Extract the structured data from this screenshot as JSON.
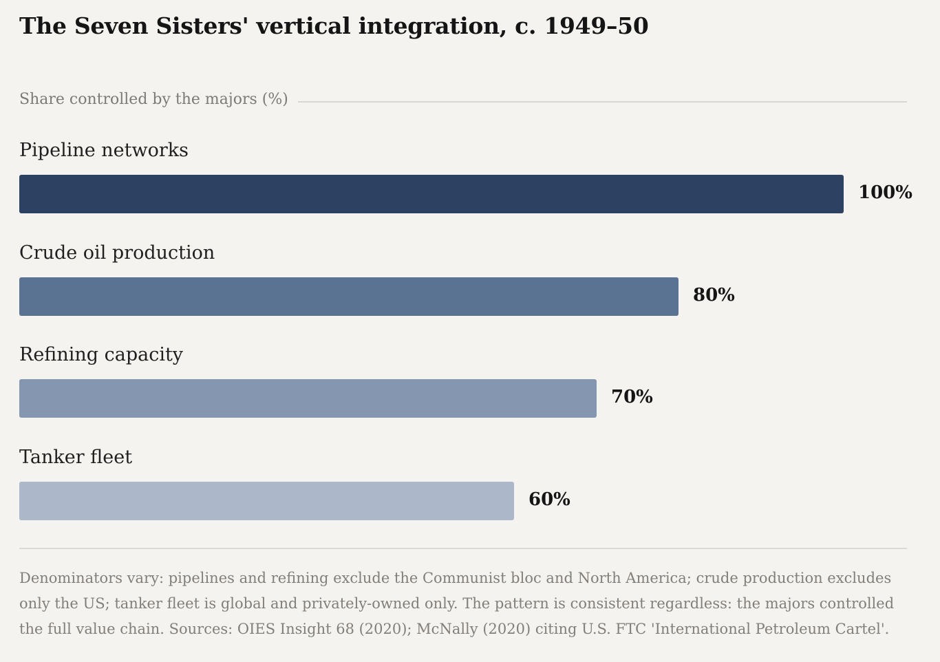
{
  "chart_data": {
    "type": "bar",
    "orientation": "horizontal",
    "title": "The Seven Sisters' vertical integration, c. 1949–50",
    "ylabel": "Share controlled by the majors (%)",
    "xlabel": "",
    "xlim": [
      0,
      100
    ],
    "grid": false,
    "categories": [
      "Pipeline networks",
      "Crude oil production",
      "Refining capacity",
      "Tanker fleet"
    ],
    "values": [
      100,
      80,
      70,
      60
    ],
    "value_labels": [
      "100%",
      "80%",
      "70%",
      "60%"
    ],
    "colors": [
      "#2d4263",
      "#5b7393",
      "#8496b0",
      "#acb7ca"
    ],
    "note": "Denominators vary: pipelines and refining exclude the Communist bloc and North America; crude production excludes only the US; tanker fleet is global and privately-owned only. The pattern is consistent regardless: the majors controlled the full value chain. Sources: OIES Insight 68 (2020); McNally (2020) citing U.S. FTC 'International Petroleum Cartel'."
  }
}
